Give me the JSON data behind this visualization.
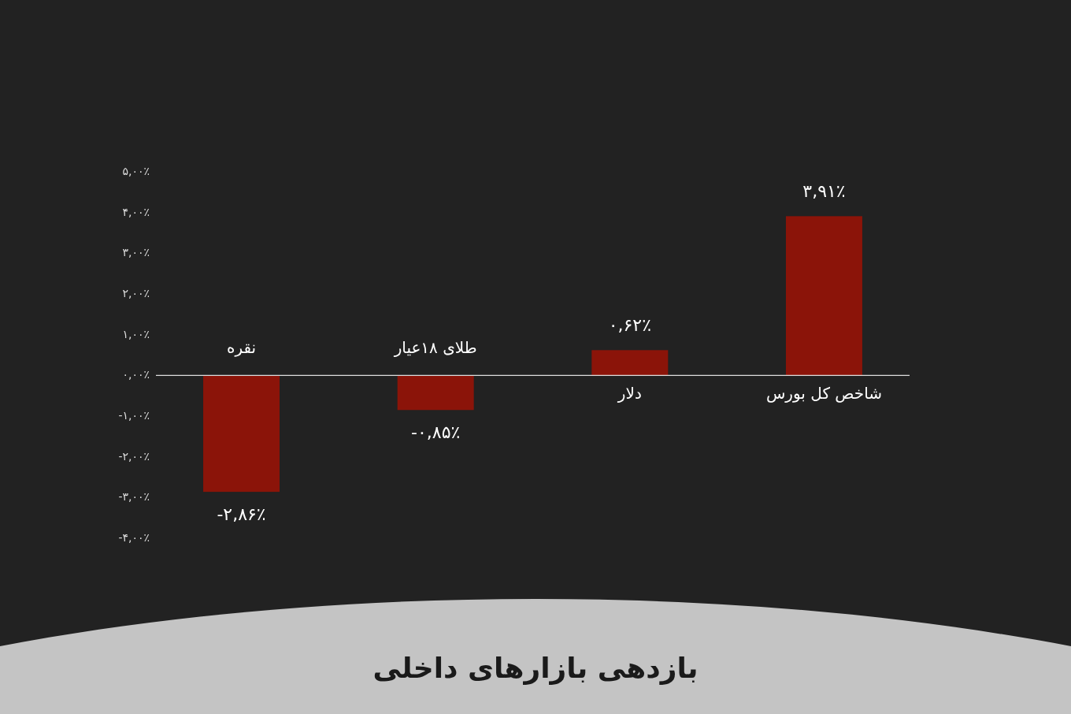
{
  "chart_data": {
    "type": "bar",
    "title": "بازدهی بازارهای داخلی",
    "categories": [
      "نقره",
      "طلای ۱۸عیار",
      "دلار",
      "شاخص کل بورس"
    ],
    "values": [
      -2.86,
      -0.85,
      0.62,
      3.91
    ],
    "value_labels": [
      "-۲,۸۶٪",
      "-۰,۸۵٪",
      "۰,۶۲٪",
      "۳,۹۱٪"
    ],
    "color": "#8b1409",
    "ylim": [
      -4,
      5
    ],
    "yticks": [
      {
        "value": -4,
        "label": "-۴,۰۰٪"
      },
      {
        "value": -3,
        "label": "-۳,۰۰٪"
      },
      {
        "value": -2,
        "label": "-۲,۰۰٪"
      },
      {
        "value": -1,
        "label": "-۱,۰۰٪"
      },
      {
        "value": 0,
        "label": "۰,۰۰٪"
      },
      {
        "value": 1,
        "label": "۱,۰۰٪"
      },
      {
        "value": 2,
        "label": "۲,۰۰٪"
      },
      {
        "value": 3,
        "label": "۳,۰۰٪"
      },
      {
        "value": 4,
        "label": "۴,۰۰٪"
      },
      {
        "value": 5,
        "label": "۵,۰۰٪"
      }
    ]
  }
}
